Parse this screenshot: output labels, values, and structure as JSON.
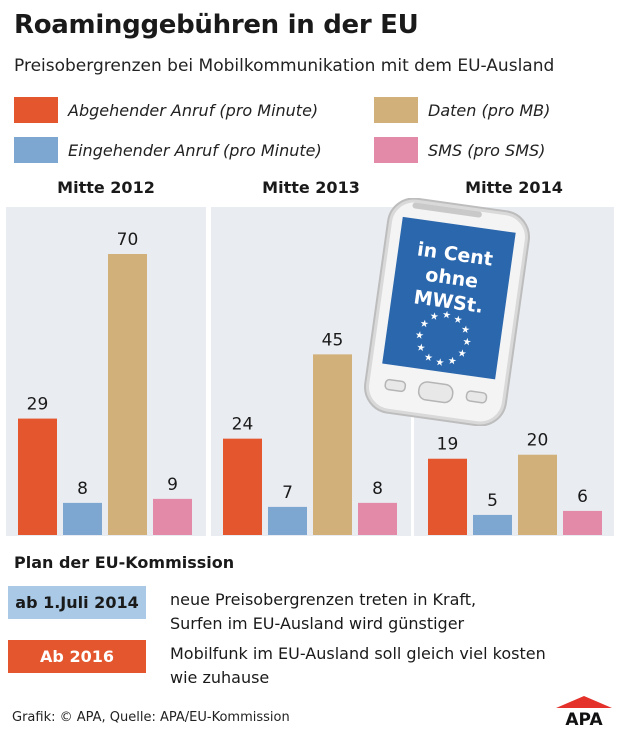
{
  "title": "Roaminggebühren in der EU",
  "subtitle": "Preisobergrenzen bei Mobilkommunikation mit dem EU-Ausland",
  "legend": [
    {
      "label": "Abgehender Anruf (pro Minute)",
      "color": "#e4572e"
    },
    {
      "label": "Eingehender Anruf (pro Minute)",
      "color": "#7da7d0"
    },
    {
      "label": "Daten (pro MB)",
      "color": "#d2b07a"
    },
    {
      "label": "SMS (pro SMS)",
      "color": "#e38aa8"
    }
  ],
  "phone": {
    "line1": "in Cent",
    "line2": "ohne",
    "line3": "MWSt."
  },
  "chart_data": {
    "type": "bar",
    "categories": [
      "Mitte 2012",
      "Mitte 2013",
      "Mitte 2014"
    ],
    "series": [
      {
        "name": "Abgehender Anruf (pro Minute)",
        "values": [
          29,
          24,
          19
        ]
      },
      {
        "name": "Eingehender Anruf (pro Minute)",
        "values": [
          8,
          7,
          5
        ]
      },
      {
        "name": "Daten (pro MB)",
        "values": [
          70,
          45,
          20
        ]
      },
      {
        "name": "SMS (pro SMS)",
        "values": [
          9,
          8,
          6
        ]
      }
    ],
    "unit": "Cent",
    "ylim": [
      0,
      90
    ],
    "legend_position": "top",
    "grid": false
  },
  "plan": {
    "title": "Plan der EU-Kommission",
    "items": [
      {
        "badge": "ab 1.Juli 2014",
        "badge_color": "#a9c9e6",
        "line1": "neue Preisobergrenzen treten in Kraft,",
        "line2": "Surfen im EU-Ausland wird günstiger"
      },
      {
        "badge": "Ab 2016",
        "badge_color": "#e4572e",
        "line1": "Mobilfunk im EU-Ausland soll gleich viel kosten",
        "line2": "wie zuhause"
      }
    ]
  },
  "footer": "Grafik: © APA, Quelle: APA/EU-Kommission",
  "logo": "APA"
}
